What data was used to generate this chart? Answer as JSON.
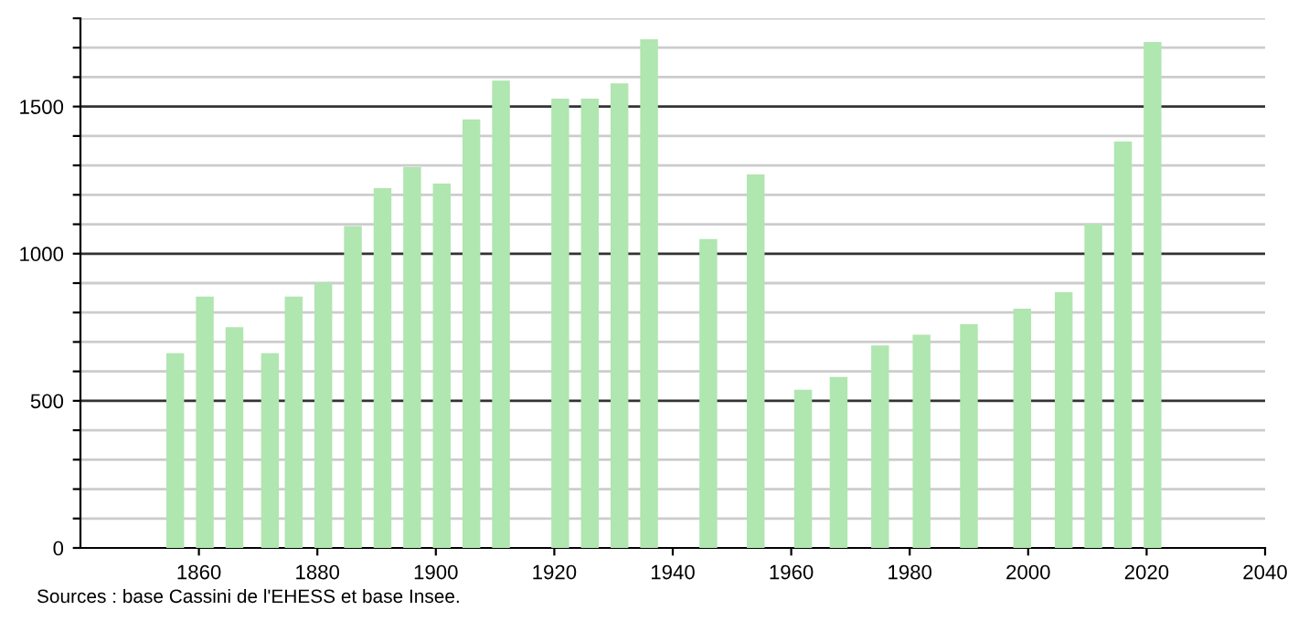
{
  "chart_data": {
    "type": "bar",
    "color": "#b0e6b0",
    "x": [
      1856,
      1861,
      1866,
      1872,
      1876,
      1881,
      1886,
      1891,
      1896,
      1901,
      1906,
      1911,
      1921,
      1926,
      1931,
      1936,
      1946,
      1954,
      1962,
      1968,
      1975,
      1982,
      1990,
      1999,
      2006,
      2011,
      2016,
      2021
    ],
    "values": [
      662,
      854,
      750,
      662,
      854,
      902,
      1094,
      1223,
      1294,
      1238,
      1456,
      1588,
      1527,
      1527,
      1579,
      1729,
      1050,
      1269,
      538,
      581,
      688,
      725,
      760,
      813,
      869,
      1102,
      1381,
      1719
    ],
    "xlim": [
      1840,
      2040
    ],
    "xticks": [
      1860,
      1880,
      1900,
      1920,
      1940,
      1960,
      1980,
      2000,
      2020,
      2040
    ],
    "ylim": [
      0,
      1800
    ],
    "yticks": [
      0,
      {
        "value": 100,
        "label": null
      },
      {
        "value": 200,
        "label": null
      },
      {
        "value": 300,
        "label": null
      },
      {
        "value": 400,
        "label": null
      },
      500,
      {
        "value": 600,
        "label": null
      },
      {
        "value": 700,
        "label": null
      },
      {
        "value": 800,
        "label": null
      },
      {
        "value": 900,
        "label": null
      },
      1000,
      {
        "value": 1100,
        "label": null
      },
      {
        "value": 1200,
        "label": null
      },
      {
        "value": 1300,
        "label": null
      },
      {
        "value": 1400,
        "label": null
      },
      1500,
      {
        "value": 1600,
        "label": null
      },
      {
        "value": 1700,
        "label": null
      },
      {
        "value": 1800,
        "label": null
      }
    ],
    "grid": "y",
    "annotations": [
      "Sources : base Cassini de l'EHESS et base Insee."
    ]
  }
}
